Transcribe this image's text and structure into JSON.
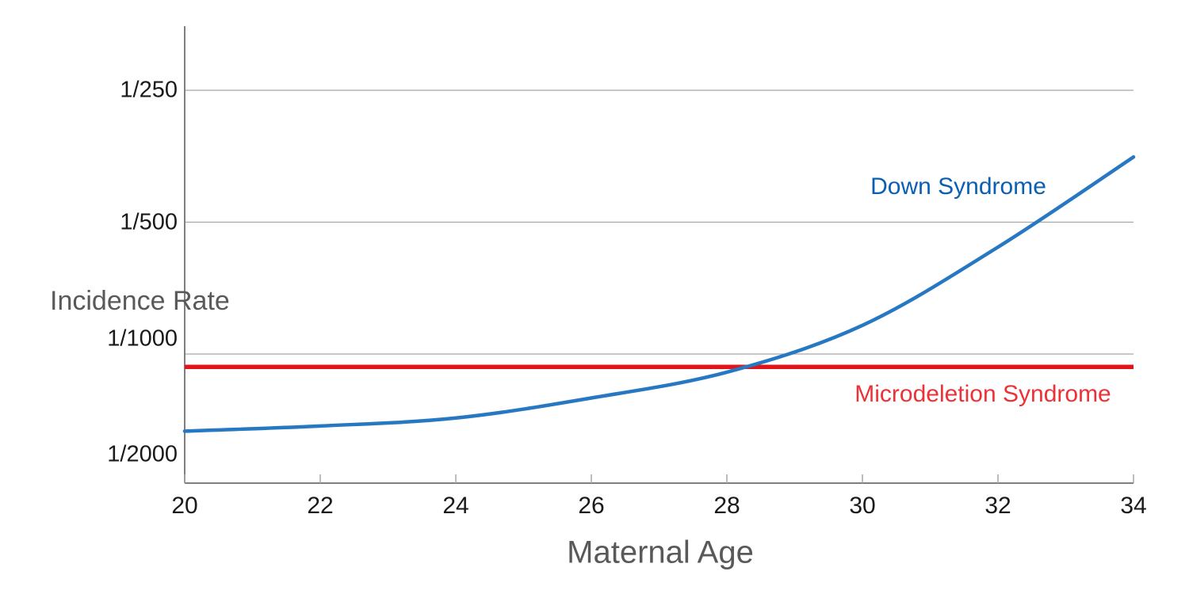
{
  "chart_data": {
    "type": "line",
    "title": "",
    "xlabel": "Maternal Age",
    "ylabel": "Incidence Rate",
    "x": [
      20,
      22,
      24,
      26,
      28,
      30,
      32,
      34
    ],
    "x_tick_labels": [
      "20",
      "22",
      "24",
      "26",
      "28",
      "30",
      "32",
      "34"
    ],
    "y_tick_labels": [
      "1/250",
      "1/500",
      "1/1000",
      "1/2000"
    ],
    "y_tick_denominators": [
      250,
      500,
      1000,
      2000
    ],
    "y_axis_type": "logarithmic incidence rate 1/N (rate halves per gridline step)",
    "xlim": [
      20,
      34
    ],
    "grid": "horizontal",
    "legend_position": "inline text labels next to lines",
    "series": [
      {
        "name": "Down Syndrome",
        "shape": "rising curve",
        "line_color": "#2778C2",
        "label_color": "#0A5FB4",
        "incidence_denominators": [
          1500,
          1460,
          1400,
          1260,
          1100,
          860,
          570,
          355
        ]
      },
      {
        "name": "Microdeletion Syndrome",
        "shape": "constant horizontal line",
        "line_color": "#E0151B",
        "label_color": "#EC3237",
        "incidence_denominators": [
          1070,
          1070,
          1070,
          1070,
          1070,
          1070,
          1070,
          1070
        ]
      }
    ],
    "annotations": {
      "crossover": "blue curve crosses red line near maternal age 28.3"
    },
    "colors": {
      "gridline": "#A6A6A6",
      "axis": "#7F7F7F",
      "tick_text": "#1A1A1A",
      "axis_title_text": "#595959",
      "background": "#FFFFFF"
    }
  }
}
